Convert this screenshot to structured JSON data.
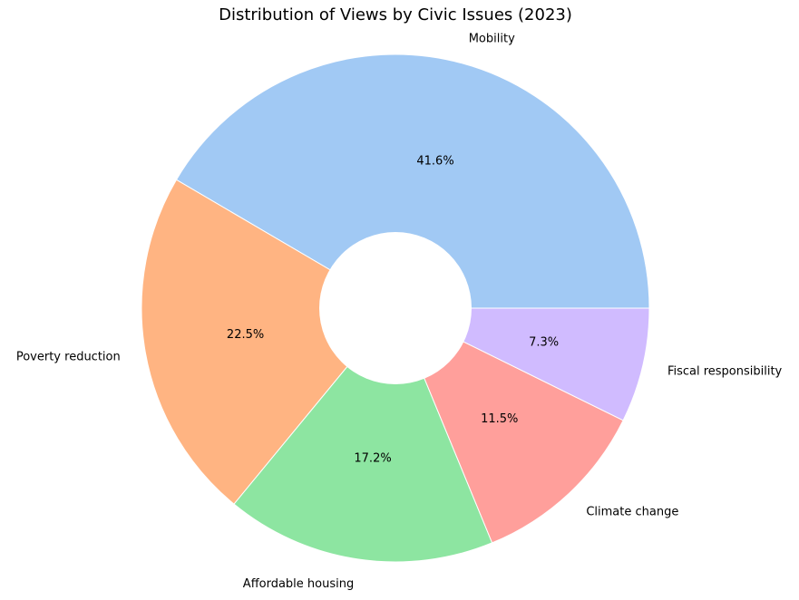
{
  "chart_data": {
    "type": "pie",
    "title": "Distribution of Views by Civic Issues (2023)",
    "categories": [
      "Mobility",
      "Poverty reduction",
      "Affordable housing",
      "Climate change",
      "Fiscal responsibility"
    ],
    "values": [
      41.6,
      22.5,
      17.2,
      11.5,
      7.3
    ],
    "percent_labels": [
      "41.6%",
      "22.5%",
      "17.2%",
      "11.5%",
      "7.3%"
    ],
    "colors": [
      "#a1c9f4",
      "#ffb482",
      "#8de5a1",
      "#ff9f9b",
      "#d0bbff"
    ],
    "start_angle_deg": 0,
    "direction": "counterclockwise",
    "donut_hole": true,
    "legend": "none"
  }
}
